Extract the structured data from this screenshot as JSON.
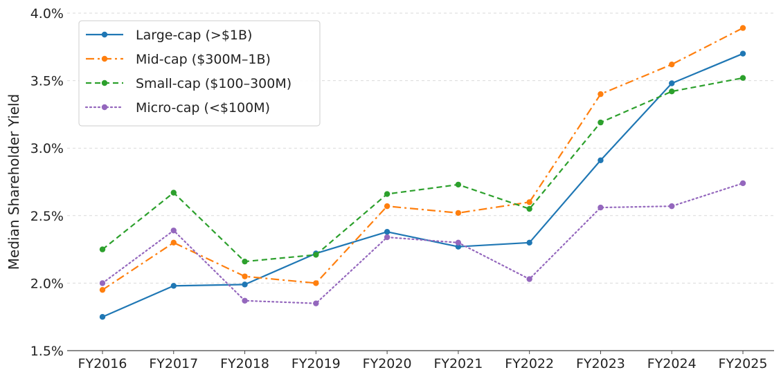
{
  "chart_data": {
    "type": "line",
    "title": "",
    "xlabel": "",
    "ylabel": "Median Shareholder Yield",
    "categories": [
      "FY2016",
      "FY2017",
      "FY2018",
      "FY2019",
      "FY2020",
      "FY2021",
      "FY2022",
      "FY2023",
      "FY2024",
      "FY2025"
    ],
    "ylim": [
      1.5,
      4.0
    ],
    "yticks": [
      1.5,
      2.0,
      2.5,
      3.0,
      3.5,
      4.0
    ],
    "ytick_labels": [
      "1.5%",
      "2.0%",
      "2.5%",
      "3.0%",
      "3.5%",
      "4.0%"
    ],
    "grid": "horizontal dashed",
    "legend_position": "top-left",
    "series": [
      {
        "name": "Large-cap (>$1B)",
        "color": "#1f77b4",
        "dash": "solid",
        "values": [
          1.75,
          1.98,
          1.99,
          2.22,
          2.38,
          2.27,
          2.3,
          2.91,
          3.48,
          3.7
        ]
      },
      {
        "name": "Mid-cap ($300M–1B)",
        "color": "#ff7f0e",
        "dash": "dashdot",
        "values": [
          1.95,
          2.3,
          2.05,
          2.0,
          2.57,
          2.52,
          2.6,
          3.4,
          3.62,
          3.89
        ]
      },
      {
        "name": "Small-cap ($100–300M)",
        "color": "#2ca02c",
        "dash": "dashed",
        "values": [
          2.25,
          2.67,
          2.16,
          2.21,
          2.66,
          2.73,
          2.55,
          3.19,
          3.42,
          3.52
        ]
      },
      {
        "name": "Micro-cap (<$100M)",
        "color": "#9467bd",
        "dash": "dotted",
        "values": [
          2.0,
          2.39,
          1.87,
          1.85,
          2.34,
          2.3,
          2.03,
          2.56,
          2.57,
          2.74
        ]
      }
    ]
  }
}
